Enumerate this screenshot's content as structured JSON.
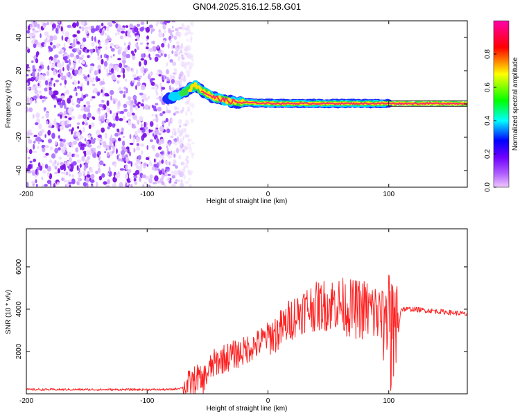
{
  "title": "GN04.2025.316.12.58.G01",
  "chart_data": [
    {
      "type": "heatmap",
      "name": "spectrogram",
      "xlabel": "Height of straight line (km)",
      "ylabel": "Frequency (Hz)",
      "xlim": [
        -200,
        165
      ],
      "ylim": [
        -50,
        50
      ],
      "xticks": [
        -200,
        -100,
        0,
        100
      ],
      "yticks": [
        -40,
        -20,
        0,
        20,
        40
      ],
      "noise_region_x": [
        -200,
        -80
      ],
      "signal_track": {
        "x": [
          -82,
          -75,
          -70,
          -65,
          -60,
          -55,
          -50,
          -45,
          -40,
          -35,
          -30,
          -25,
          -20,
          -15,
          -10,
          -5,
          0,
          10,
          20,
          30,
          40,
          50,
          60,
          70,
          80,
          90,
          95,
          100,
          110,
          120,
          130,
          140,
          150,
          160,
          165
        ],
        "freq": [
          3,
          5,
          7,
          9,
          11,
          8,
          6,
          4,
          3,
          2,
          1.5,
          1,
          1,
          0.8,
          0.6,
          0.5,
          0.4,
          0.3,
          0.3,
          0.3,
          0.3,
          0.3,
          0.3,
          0.3,
          0.3,
          0.3,
          0.3,
          0.3,
          0.3,
          0.3,
          0.3,
          0.3,
          0.3,
          0.3,
          0.3
        ]
      },
      "colorbar": {
        "label": "Normalized spectral amplitude",
        "ticks": [
          "0.0",
          "0.2",
          "0.4",
          "0.6",
          "0.8"
        ],
        "range": [
          0,
          1
        ],
        "colors": [
          "#f0c8ff",
          "#8000ff",
          "#0000ff",
          "#00ffff",
          "#00ff00",
          "#ffff00",
          "#ff0000",
          "#ff00ff"
        ]
      }
    },
    {
      "type": "line",
      "name": "snr",
      "xlabel": "Height of straight line (km)",
      "ylabel": "SNR (10 * v/v)",
      "xlim": [
        -200,
        165
      ],
      "ylim": [
        0,
        7800
      ],
      "xticks": [
        -200,
        -100,
        0,
        100
      ],
      "yticks": [
        2000,
        4000,
        6000
      ],
      "color": "#ff2020",
      "series": [
        {
          "name": "SNR",
          "x": [
            -200,
            -180,
            -160,
            -140,
            -120,
            -100,
            -90,
            -80,
            -75,
            -70,
            -65,
            -60,
            -58,
            -55,
            -50,
            -45,
            -40,
            -35,
            -30,
            -25,
            -20,
            -15,
            -10,
            -5,
            0,
            5,
            10,
            15,
            20,
            25,
            30,
            35,
            40,
            45,
            50,
            55,
            60,
            65,
            70,
            75,
            80,
            85,
            90,
            95,
            97,
            100,
            103,
            105,
            107,
            110,
            120,
            130,
            140,
            150,
            160,
            165
          ],
          "y": [
            200,
            200,
            200,
            200,
            200,
            200,
            200,
            200,
            250,
            300,
            450,
            650,
            800,
            500,
            1000,
            1400,
            1600,
            1700,
            1800,
            1900,
            2000,
            2200,
            2300,
            2500,
            2700,
            2800,
            3000,
            3300,
            3600,
            3800,
            4000,
            4100,
            4100,
            4200,
            4200,
            4300,
            4200,
            4100,
            4000,
            4000,
            4000,
            3900,
            3800,
            3500,
            3300,
            3000,
            2500,
            1500,
            2500,
            4000,
            4000,
            3950,
            3900,
            3850,
            3800,
            3750
          ]
        }
      ]
    }
  ]
}
